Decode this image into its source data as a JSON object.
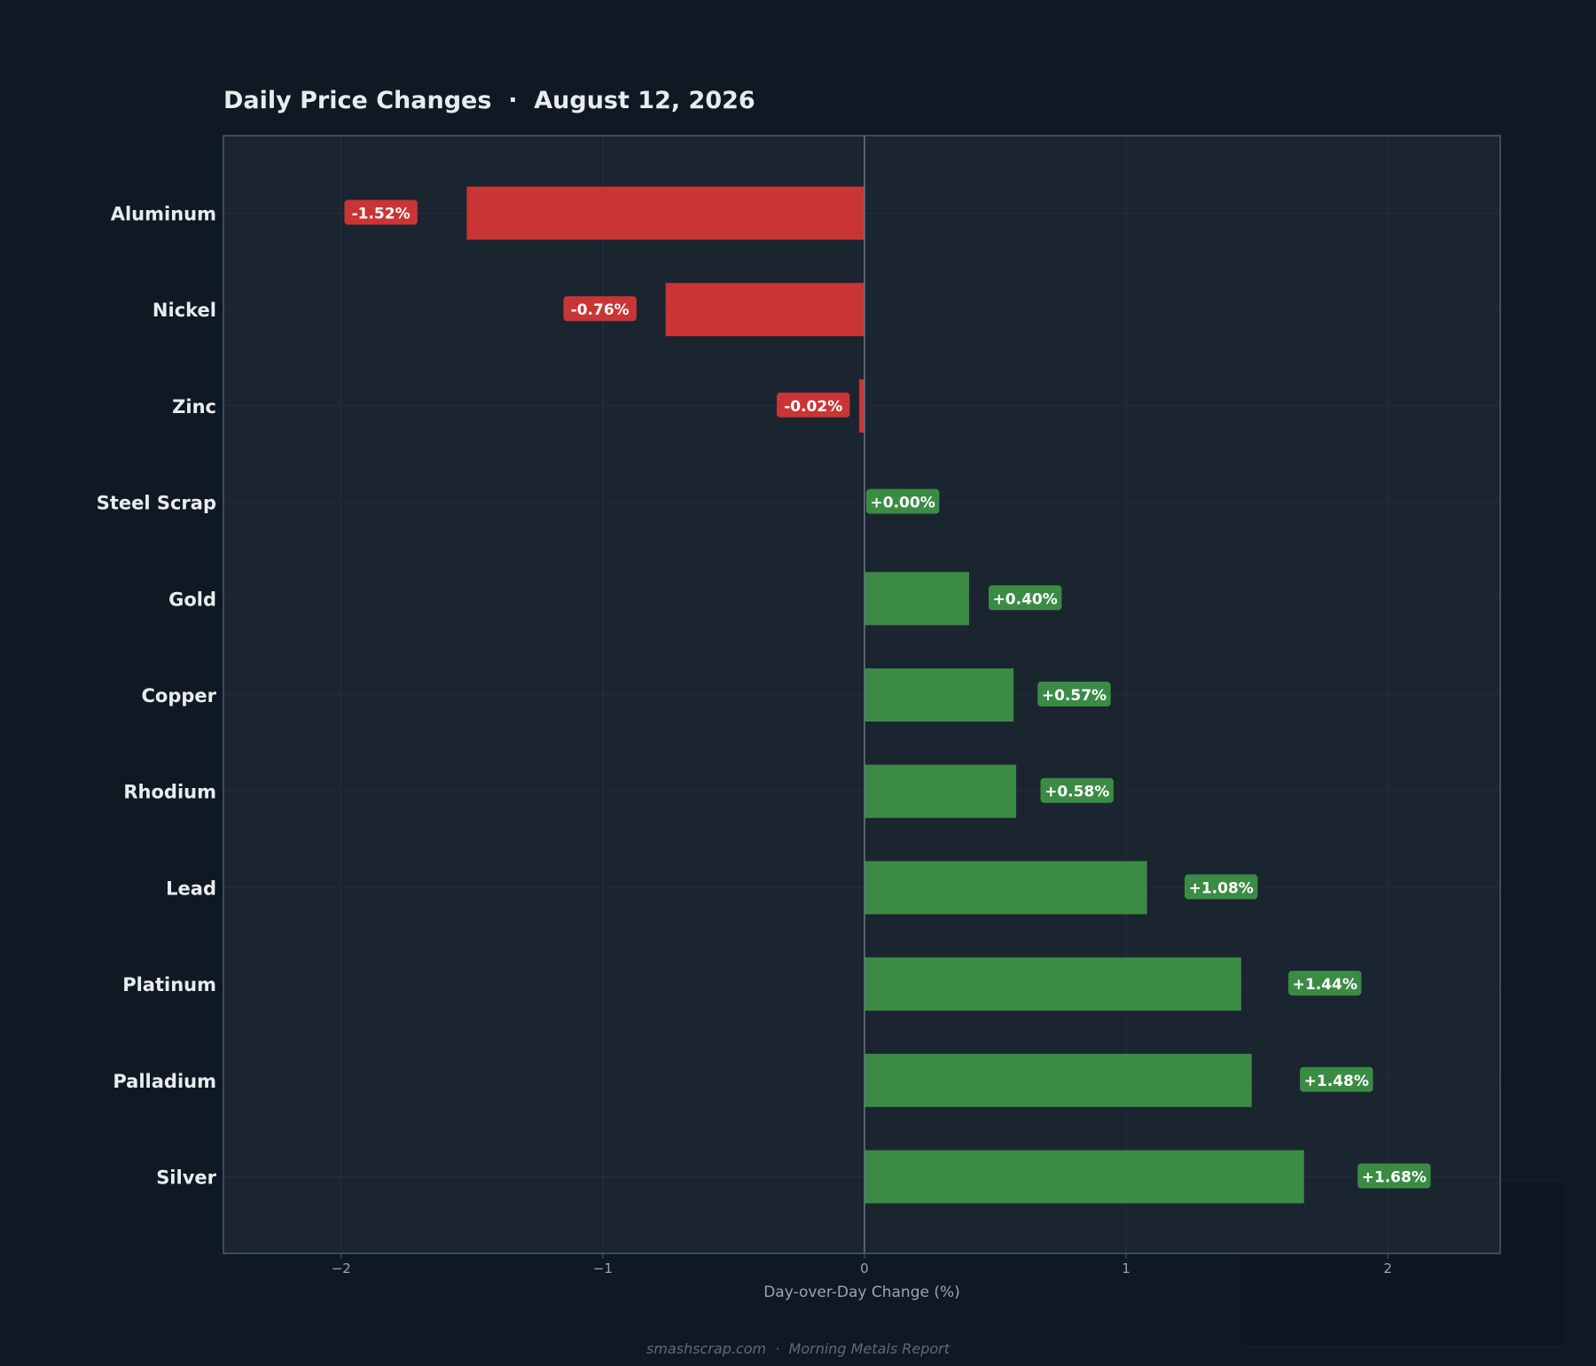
{
  "chart_data": {
    "type": "bar",
    "orientation": "horizontal",
    "title": "Daily Price Changes  ·  August 12, 2026",
    "xlabel": "Day-over-Day Change (%)",
    "ylabel": "",
    "xlim": [
      -2.45,
      2.43
    ],
    "xticks": [
      {
        "value": -2,
        "label": "−2"
      },
      {
        "value": -1,
        "label": "−1"
      },
      {
        "value": 0,
        "label": "0"
      },
      {
        "value": 1,
        "label": "1"
      },
      {
        "value": 2,
        "label": "2"
      }
    ],
    "categories": [
      "Aluminum",
      "Nickel",
      "Zinc",
      "Steel Scrap",
      "Gold",
      "Copper",
      "Rhodium",
      "Lead",
      "Platinum",
      "Palladium",
      "Silver"
    ],
    "values": [
      -1.52,
      -0.76,
      -0.02,
      0.0,
      0.4,
      0.57,
      0.58,
      1.08,
      1.44,
      1.48,
      1.68
    ],
    "value_labels": [
      "-1.52%",
      "-0.76%",
      "-0.02%",
      "+0.00%",
      "+0.40%",
      "+0.57%",
      "+0.58%",
      "+1.08%",
      "+1.44%",
      "+1.48%",
      "+1.68%"
    ],
    "grid": true,
    "legend": "none",
    "colors": {
      "negative": "#c93535",
      "positive": "#3b8b45",
      "page_bg": "#0f1923",
      "plot_bg": "#1b2530",
      "frame": "#4b5a68",
      "zero_line": "#6b7785",
      "title_text": "#e8ecef",
      "category_text": "#e8ecef",
      "tick_text": "#9aa5b1",
      "footer_text": "#5d6a77"
    }
  },
  "footer": "smashscrap.com  ·  Morning Metals Report"
}
